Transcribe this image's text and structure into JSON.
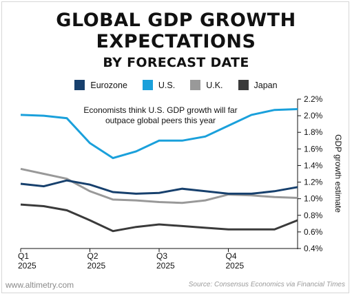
{
  "title": {
    "line1": "GLOBAL GDP GROWTH",
    "line2": "EXPECTATIONS",
    "line3": "BY FORECAST DATE"
  },
  "footer": {
    "website": "www.altimetry.com",
    "source": "Source: Consensus Economics via Financial Times"
  },
  "chart_data": {
    "type": "line",
    "title": "GLOBAL GDP GROWTH EXPECTATIONS BY FORECAST DATE",
    "ylabel": "GDP growth estimate",
    "xlabel": "",
    "ylim": [
      0.4,
      2.2
    ],
    "yticks": [
      "0.4%",
      "0.6%",
      "0.8%",
      "1.0%",
      "1.2%",
      "1.4%",
      "1.6%",
      "1.8%",
      "2.0%",
      "2.2%"
    ],
    "ytick_values": [
      0.4,
      0.6,
      0.8,
      1.0,
      1.2,
      1.4,
      1.6,
      1.8,
      2.0,
      2.2
    ],
    "xticks": [
      {
        "line1": "Q1",
        "line2": "2025"
      },
      {
        "line1": "Q2",
        "line2": "2025"
      },
      {
        "line1": "Q3",
        "line2": "2025"
      },
      {
        "line1": "Q4",
        "line2": "2025"
      }
    ],
    "x": [
      0,
      1,
      2,
      3,
      4,
      5,
      6,
      7,
      8,
      9,
      10,
      11,
      12
    ],
    "xtick_positions": [
      0,
      3,
      6,
      9
    ],
    "annotation": {
      "line1": "Economists think U.S. GDP growth will far",
      "line2": "outpace global peers this year"
    },
    "legend_position": "top",
    "grid": false,
    "series": [
      {
        "name": "Eurozone",
        "color": "#17406d",
        "values": [
          1.18,
          1.15,
          1.22,
          1.17,
          1.08,
          1.06,
          1.07,
          1.12,
          1.09,
          1.06,
          1.06,
          1.09,
          1.14
        ]
      },
      {
        "name": "U.S.",
        "color": "#1aa0db",
        "values": [
          2.01,
          2.0,
          1.97,
          1.67,
          1.49,
          1.57,
          1.7,
          1.7,
          1.75,
          1.88,
          2.01,
          2.07,
          2.08
        ]
      },
      {
        "name": "U.K.",
        "color": "#999999",
        "values": [
          1.36,
          1.3,
          1.24,
          1.09,
          0.99,
          0.98,
          0.96,
          0.95,
          0.98,
          1.05,
          1.04,
          1.02,
          1.01
        ]
      },
      {
        "name": "Japan",
        "color": "#3a3a3a",
        "values": [
          0.93,
          0.91,
          0.86,
          0.74,
          0.61,
          0.66,
          0.69,
          0.67,
          0.65,
          0.63,
          0.63,
          0.63,
          0.74
        ]
      }
    ]
  }
}
